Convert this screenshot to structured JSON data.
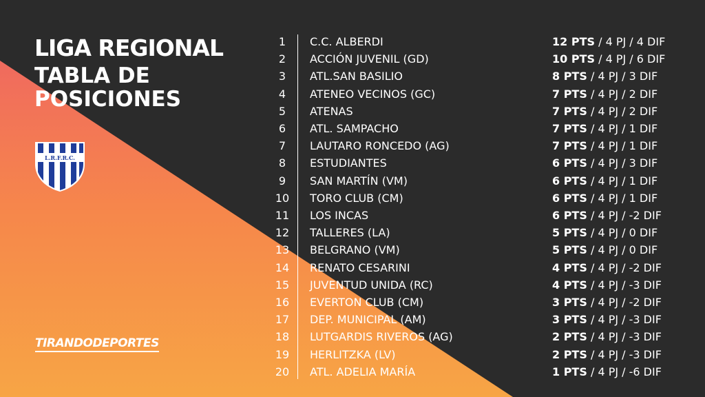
{
  "header": {
    "title": "LIGA REGIONAL",
    "subtitle": "TABLA DE POSICIONES",
    "crest_text": "L.R.F.R.C."
  },
  "brand": "TIRANDODEPORTES",
  "colors": {
    "background": "#2b2b2b",
    "gradient_top": "#f06a5e",
    "gradient_mid": "#f6874b",
    "gradient_bottom": "#f7a545",
    "crest_blue": "#1f3d9a"
  },
  "standings": [
    {
      "pos": "1",
      "team": "C.C. ALBERDI",
      "pts": "12 PTS",
      "rest": " / 4 PJ / 4 DIF"
    },
    {
      "pos": "2",
      "team": "ACCIÓN JUVENIL (GD)",
      "pts": "10 PTS",
      "rest": " / 4 PJ / 6 DIF"
    },
    {
      "pos": "3",
      "team": "ATL.SAN BASILIO",
      "pts": "8 PTS",
      "rest": " / 4 PJ / 3 DIF"
    },
    {
      "pos": "4",
      "team": "ATENEO VECINOS (GC)",
      "pts": "7 PTS",
      "rest": " / 4 PJ / 2 DIF"
    },
    {
      "pos": "5",
      "team": "ATENAS",
      "pts": "7 PTS",
      "rest": " / 4 PJ / 2 DIF"
    },
    {
      "pos": "6",
      "team": "ATL. SAMPACHO",
      "pts": "7 PTS",
      "rest": " / 4 PJ / 1 DIF"
    },
    {
      "pos": "7",
      "team": "LAUTARO RONCEDO (AG)",
      "pts": "7 PTS",
      "rest": " / 4 PJ / 1 DIF"
    },
    {
      "pos": "8",
      "team": "ESTUDIANTES",
      "pts": "6 PTS",
      "rest": " / 4 PJ / 3 DIF"
    },
    {
      "pos": "9",
      "team": "SAN MARTÍN (VM)",
      "pts": "6 PTS",
      "rest": " / 4 PJ / 1 DIF"
    },
    {
      "pos": "10",
      "team": "TORO CLUB (CM)",
      "pts": "6 PTS",
      "rest": " / 4 PJ / 1 DIF"
    },
    {
      "pos": "11",
      "team": "LOS INCAS",
      "pts": "6 PTS",
      "rest": " / 4 PJ / -2 DIF"
    },
    {
      "pos": "12",
      "team": "TALLERES (LA)",
      "pts": "5 PTS",
      "rest": " / 4 PJ / 0 DIF"
    },
    {
      "pos": "13",
      "team": "BELGRANO (VM)",
      "pts": "5 PTS",
      "rest": " / 4 PJ / 0 DIF"
    },
    {
      "pos": "14",
      "team": "RENATO CESARINI",
      "pts": "4 PTS",
      "rest": " / 4 PJ / -2 DIF"
    },
    {
      "pos": "15",
      "team": "JUVENTUD UNIDA (RC)",
      "pts": "4 PTS",
      "rest": " / 4 PJ / -3 DIF"
    },
    {
      "pos": "16",
      "team": "EVERTON CLUB (CM)",
      "pts": "3 PTS",
      "rest": " / 4 PJ / -2 DIF"
    },
    {
      "pos": "17",
      "team": "DEP. MUNICIPAL (AM)",
      "pts": "3 PTS",
      "rest": " / 4 PJ / -3 DIF"
    },
    {
      "pos": "18",
      "team": "LUTGARDIS RIVEROS (AG)",
      "pts": "2 PTS",
      "rest": " / 4 PJ / -3 DIF"
    },
    {
      "pos": "19",
      "team": "HERLITZKA (LV)",
      "pts": "2 PTS",
      "rest": " / 4 PJ / -3 DIF"
    },
    {
      "pos": "20",
      "team": "ATL. ADELIA MARÍA",
      "pts": "1 PTS",
      "rest": " / 4 PJ / -6 DIF"
    }
  ]
}
